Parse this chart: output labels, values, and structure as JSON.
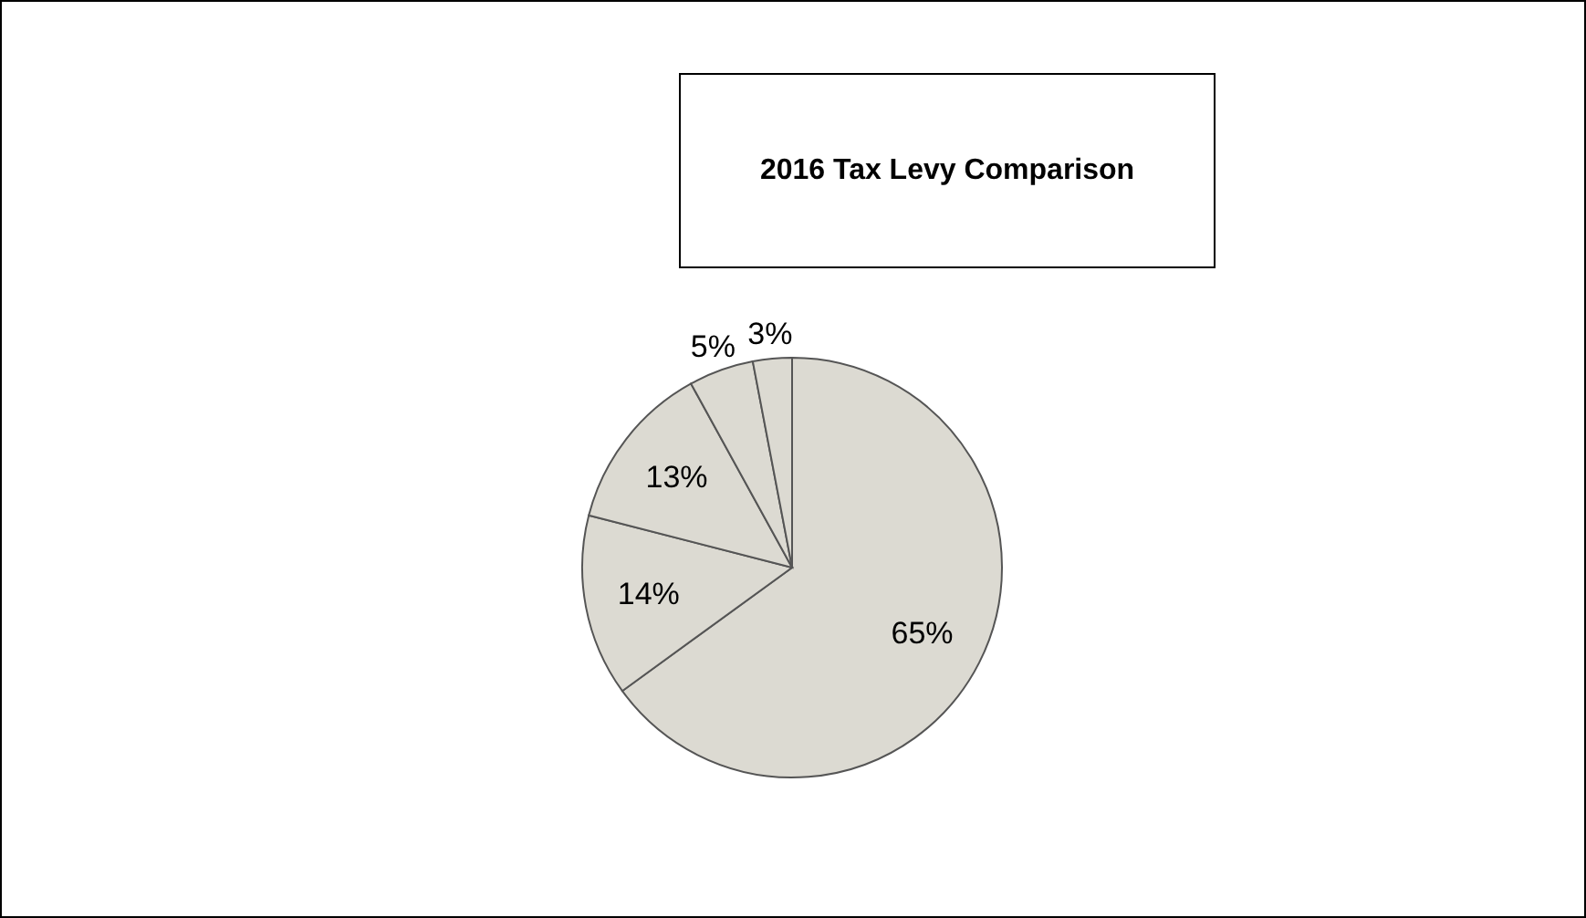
{
  "chart_data": {
    "type": "pie",
    "title": "2016 Tax Levy Comparison",
    "categories": [
      null,
      null,
      null,
      null,
      null
    ],
    "values": [
      65,
      14,
      13,
      5,
      3
    ],
    "colors": [
      "#dcdad2",
      "#dcdad2",
      "#dcdad2",
      "#dcdad2",
      "#dcdad2"
    ],
    "value_labels": [
      "65%",
      "14%",
      "13%",
      "5%",
      "3%"
    ]
  }
}
